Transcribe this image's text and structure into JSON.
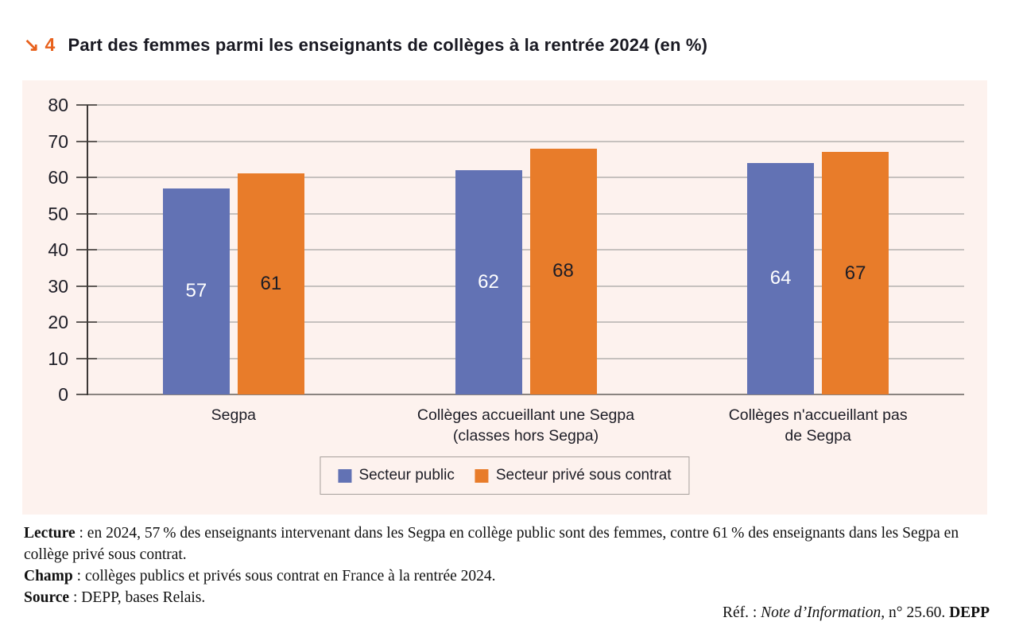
{
  "header": {
    "arrow": "↘",
    "number": "4",
    "title": "Part des femmes parmi les enseignants de collèges à la rentrée 2024 (en %)"
  },
  "colors": {
    "accent_orange": "#e8611c",
    "panel_background": "#fdf2ee",
    "public_blue": "#6272b4",
    "private_orange": "#e87c2a"
  },
  "chart_data": {
    "type": "bar",
    "title": "Part des femmes parmi les enseignants de collèges à la rentrée 2024 (en %)",
    "xlabel": "",
    "ylabel": "",
    "ylim": [
      0,
      80
    ],
    "ytick_step": 10,
    "grid": true,
    "legend_position": "bottom",
    "categories": [
      "Segpa",
      "Collèges accueillant une Segpa (classes hors Segpa)",
      "Collèges n'accueillant pas de Segpa"
    ],
    "categories_lines": [
      [
        "Segpa"
      ],
      [
        "Collèges accueillant une Segpa",
        "(classes hors Segpa)"
      ],
      [
        "Collèges n'accueillant pas",
        "de Segpa"
      ]
    ],
    "series": [
      {
        "name": "Secteur public",
        "color": "#6272b4",
        "label_color": "#ffffff",
        "values": [
          57,
          62,
          64
        ]
      },
      {
        "name": "Secteur privé sous contrat",
        "color": "#e87c2a",
        "label_color": "#1d1d26",
        "values": [
          61,
          68,
          67
        ]
      }
    ]
  },
  "notes": {
    "lecture_label": "Lecture",
    "lecture_text": " : en 2024, 57 % des enseignants intervenant dans les Segpa en collège public sont des femmes, contre 61 % des enseignants dans les Segpa en collège privé sous contrat.",
    "champ_label": "Champ",
    "champ_text": " : collèges publics et privés sous contrat en France à la rentrée 2024.",
    "source_label": "Source",
    "source_text": " : DEPP, bases Relais.",
    "ref": {
      "prefix": "Réf. : ",
      "italic": "Note d’Information,",
      "mid": " n° 25.60. ",
      "bold": "DEPP"
    }
  }
}
